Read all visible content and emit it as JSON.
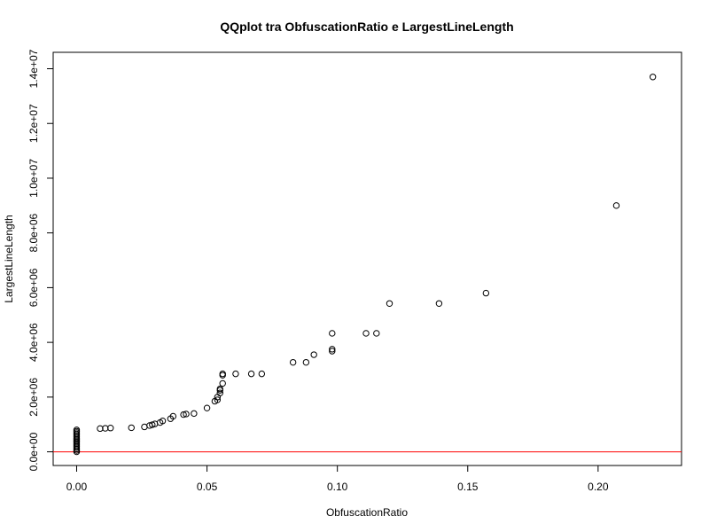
{
  "chart_data": {
    "type": "scatter",
    "title": "QQplot tra ObfuscationRatio e LargestLineLength",
    "xlabel": "ObfuscationRatio",
    "ylabel": "LargestLineLength",
    "xlim": [
      -0.009,
      0.232
    ],
    "ylim": [
      -500000,
      14600000
    ],
    "xticks": [
      0.0,
      0.05,
      0.1,
      0.15,
      0.2
    ],
    "xtick_labels": [
      "0.00",
      "0.05",
      "0.10",
      "0.15",
      "0.20"
    ],
    "yticks": [
      0,
      2000000,
      4000000,
      6000000,
      8000000,
      10000000,
      12000000,
      14000000
    ],
    "ytick_labels": [
      "0.0e+00",
      "2.0e+06",
      "4.0e+06",
      "6.0e+06",
      "8.0e+06",
      "1.0e+07",
      "1.2e+07",
      "1.4e+07"
    ],
    "grid": false,
    "reference_line": {
      "y": 0,
      "color": "#ff0000"
    },
    "points": [
      [
        0.0,
        0
      ],
      [
        0.0,
        50000
      ],
      [
        0.0,
        100000
      ],
      [
        0.0,
        150000
      ],
      [
        0.0,
        200000
      ],
      [
        0.0,
        250000
      ],
      [
        0.0,
        300000
      ],
      [
        0.0,
        350000
      ],
      [
        0.0,
        400000
      ],
      [
        0.0,
        450000
      ],
      [
        0.0,
        500000
      ],
      [
        0.0,
        550000
      ],
      [
        0.0,
        600000
      ],
      [
        0.0,
        650000
      ],
      [
        0.0,
        700000
      ],
      [
        0.0,
        750000
      ],
      [
        0.0,
        800000
      ],
      [
        0.009,
        850000
      ],
      [
        0.011,
        860000
      ],
      [
        0.013,
        870000
      ],
      [
        0.021,
        880000
      ],
      [
        0.026,
        910000
      ],
      [
        0.028,
        960000
      ],
      [
        0.029,
        990000
      ],
      [
        0.03,
        1020000
      ],
      [
        0.032,
        1070000
      ],
      [
        0.033,
        1130000
      ],
      [
        0.036,
        1210000
      ],
      [
        0.037,
        1300000
      ],
      [
        0.041,
        1360000
      ],
      [
        0.042,
        1380000
      ],
      [
        0.045,
        1400000
      ],
      [
        0.05,
        1600000
      ],
      [
        0.053,
        1850000
      ],
      [
        0.054,
        1900000
      ],
      [
        0.054,
        2000000
      ],
      [
        0.055,
        2150000
      ],
      [
        0.055,
        2250000
      ],
      [
        0.055,
        2300000
      ],
      [
        0.056,
        2500000
      ],
      [
        0.056,
        2800000
      ],
      [
        0.056,
        2850000
      ],
      [
        0.061,
        2850000
      ],
      [
        0.067,
        2850000
      ],
      [
        0.071,
        2850000
      ],
      [
        0.083,
        3270000
      ],
      [
        0.088,
        3270000
      ],
      [
        0.091,
        3550000
      ],
      [
        0.098,
        3680000
      ],
      [
        0.098,
        3750000
      ],
      [
        0.098,
        4330000
      ],
      [
        0.111,
        4330000
      ],
      [
        0.115,
        4330000
      ],
      [
        0.12,
        5420000
      ],
      [
        0.139,
        5420000
      ],
      [
        0.157,
        5800000
      ],
      [
        0.207,
        9000000
      ],
      [
        0.221,
        13700000
      ]
    ]
  }
}
